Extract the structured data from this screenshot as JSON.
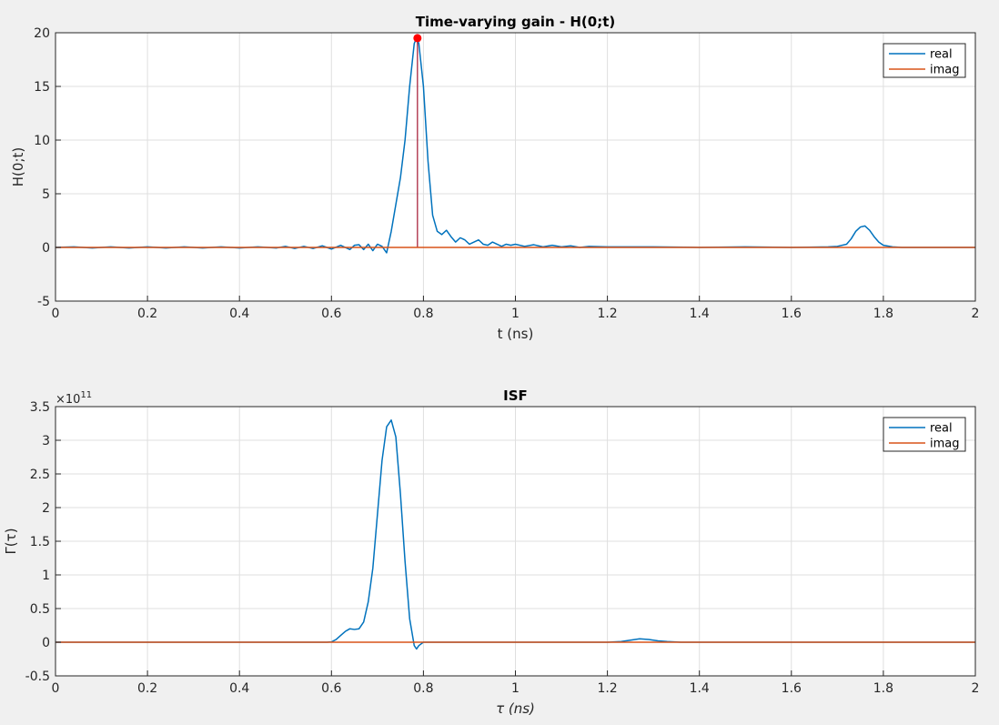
{
  "chart_data": [
    {
      "type": "line",
      "title": "Time-varying gain - H(0;t)",
      "xlabel": "t (ns)",
      "ylabel": "H(0;t)",
      "xlim": [
        0,
        2
      ],
      "ylim": [
        -5,
        20
      ],
      "xticks": [
        0,
        0.2,
        0.4,
        0.6,
        0.8,
        1,
        1.2,
        1.4,
        1.6,
        1.8,
        2
      ],
      "xticklabels": [
        "0",
        "0.2",
        "0.4",
        "0.6",
        "0.8",
        "1",
        "1.2",
        "1.4",
        "1.6",
        "1.8",
        "2"
      ],
      "yticks": [
        -5,
        0,
        5,
        10,
        15,
        20
      ],
      "yticklabels": [
        "-5",
        "0",
        "5",
        "10",
        "15",
        "20"
      ],
      "grid": true,
      "legend_location": "top-right",
      "series": [
        {
          "name": "real",
          "color": "#0072bd",
          "x": [
            0,
            0.04,
            0.08,
            0.12,
            0.16,
            0.2,
            0.24,
            0.28,
            0.32,
            0.36,
            0.4,
            0.44,
            0.48,
            0.5,
            0.52,
            0.54,
            0.56,
            0.58,
            0.6,
            0.62,
            0.64,
            0.65,
            0.66,
            0.67,
            0.68,
            0.69,
            0.7,
            0.71,
            0.72,
            0.73,
            0.74,
            0.75,
            0.76,
            0.77,
            0.78,
            0.785,
            0.79,
            0.8,
            0.81,
            0.82,
            0.83,
            0.84,
            0.85,
            0.86,
            0.87,
            0.88,
            0.89,
            0.9,
            0.91,
            0.92,
            0.93,
            0.94,
            0.95,
            0.96,
            0.97,
            0.98,
            0.99,
            1.0,
            1.02,
            1.04,
            1.06,
            1.08,
            1.1,
            1.12,
            1.14,
            1.16,
            1.2,
            1.3,
            1.4,
            1.5,
            1.6,
            1.68,
            1.7,
            1.72,
            1.73,
            1.74,
            1.75,
            1.76,
            1.77,
            1.78,
            1.79,
            1.8,
            1.82,
            1.84,
            1.9,
            2.0
          ],
          "y": [
            0,
            0.05,
            -0.05,
            0.05,
            -0.05,
            0.05,
            -0.05,
            0.05,
            -0.05,
            0.05,
            -0.05,
            0.05,
            -0.05,
            0.1,
            -0.1,
            0.1,
            -0.1,
            0.15,
            -0.15,
            0.2,
            -0.2,
            0.2,
            0.25,
            -0.2,
            0.3,
            -0.3,
            0.3,
            0.1,
            -0.5,
            1.5,
            4.0,
            6.5,
            10.0,
            15.0,
            19.0,
            19.5,
            19.0,
            15.0,
            8.0,
            3.0,
            1.5,
            1.2,
            1.6,
            1.0,
            0.5,
            0.9,
            0.7,
            0.3,
            0.5,
            0.7,
            0.3,
            0.2,
            0.5,
            0.3,
            0.1,
            0.3,
            0.2,
            0.3,
            0.1,
            0.25,
            0.05,
            0.2,
            0.05,
            0.15,
            0,
            0.1,
            0.05,
            0.05,
            0,
            0.05,
            0,
            0.05,
            0.1,
            0.3,
            0.8,
            1.5,
            1.9,
            2.0,
            1.6,
            1.0,
            0.5,
            0.2,
            0.05,
            0,
            0,
            0
          ]
        },
        {
          "name": "imag",
          "color": "#d95319",
          "x": [
            0,
            2
          ],
          "y": [
            0,
            0
          ]
        }
      ],
      "stem_marker": {
        "x": 0.787,
        "y": 19.5,
        "color": "#ff0000",
        "stem_color": "#a2142f"
      }
    },
    {
      "type": "line",
      "title": "ISF",
      "xlabel": "τ (ns)",
      "ylabel": "Γ(τ)",
      "exponent_label": "×10",
      "exponent_power": "11",
      "xlim": [
        0,
        2
      ],
      "ylim": [
        -0.5,
        3.5
      ],
      "xticks": [
        0,
        0.2,
        0.4,
        0.6,
        0.8,
        1,
        1.2,
        1.4,
        1.6,
        1.8,
        2
      ],
      "xticklabels": [
        "0",
        "0.2",
        "0.4",
        "0.6",
        "0.8",
        "1",
        "1.2",
        "1.4",
        "1.6",
        "1.8",
        "2"
      ],
      "yticks": [
        -0.5,
        0,
        0.5,
        1,
        1.5,
        2,
        2.5,
        3,
        3.5
      ],
      "yticklabels": [
        "-0.5",
        "0",
        "0.5",
        "1",
        "1.5",
        "2",
        "2.5",
        "3",
        "3.5"
      ],
      "grid": true,
      "legend_location": "top-right",
      "series": [
        {
          "name": "real",
          "color": "#0072bd",
          "x": [
            0,
            0.5,
            0.59,
            0.6,
            0.61,
            0.62,
            0.63,
            0.64,
            0.65,
            0.66,
            0.67,
            0.68,
            0.69,
            0.7,
            0.71,
            0.72,
            0.73,
            0.74,
            0.75,
            0.76,
            0.77,
            0.78,
            0.785,
            0.79,
            0.8,
            0.82,
            1.2,
            1.23,
            1.25,
            1.27,
            1.29,
            1.31,
            1.33,
            1.36,
            1.4,
            2.0
          ],
          "y": [
            0,
            0,
            0,
            0.005,
            0.04,
            0.1,
            0.16,
            0.2,
            0.19,
            0.2,
            0.3,
            0.6,
            1.1,
            1.9,
            2.7,
            3.2,
            3.3,
            3.05,
            2.2,
            1.2,
            0.35,
            -0.05,
            -0.1,
            -0.05,
            0,
            0,
            0,
            0.01,
            0.03,
            0.05,
            0.04,
            0.02,
            0.01,
            0,
            0,
            0
          ]
        },
        {
          "name": "imag",
          "color": "#d95319",
          "x": [
            0,
            2
          ],
          "y": [
            0,
            0
          ]
        }
      ]
    }
  ]
}
